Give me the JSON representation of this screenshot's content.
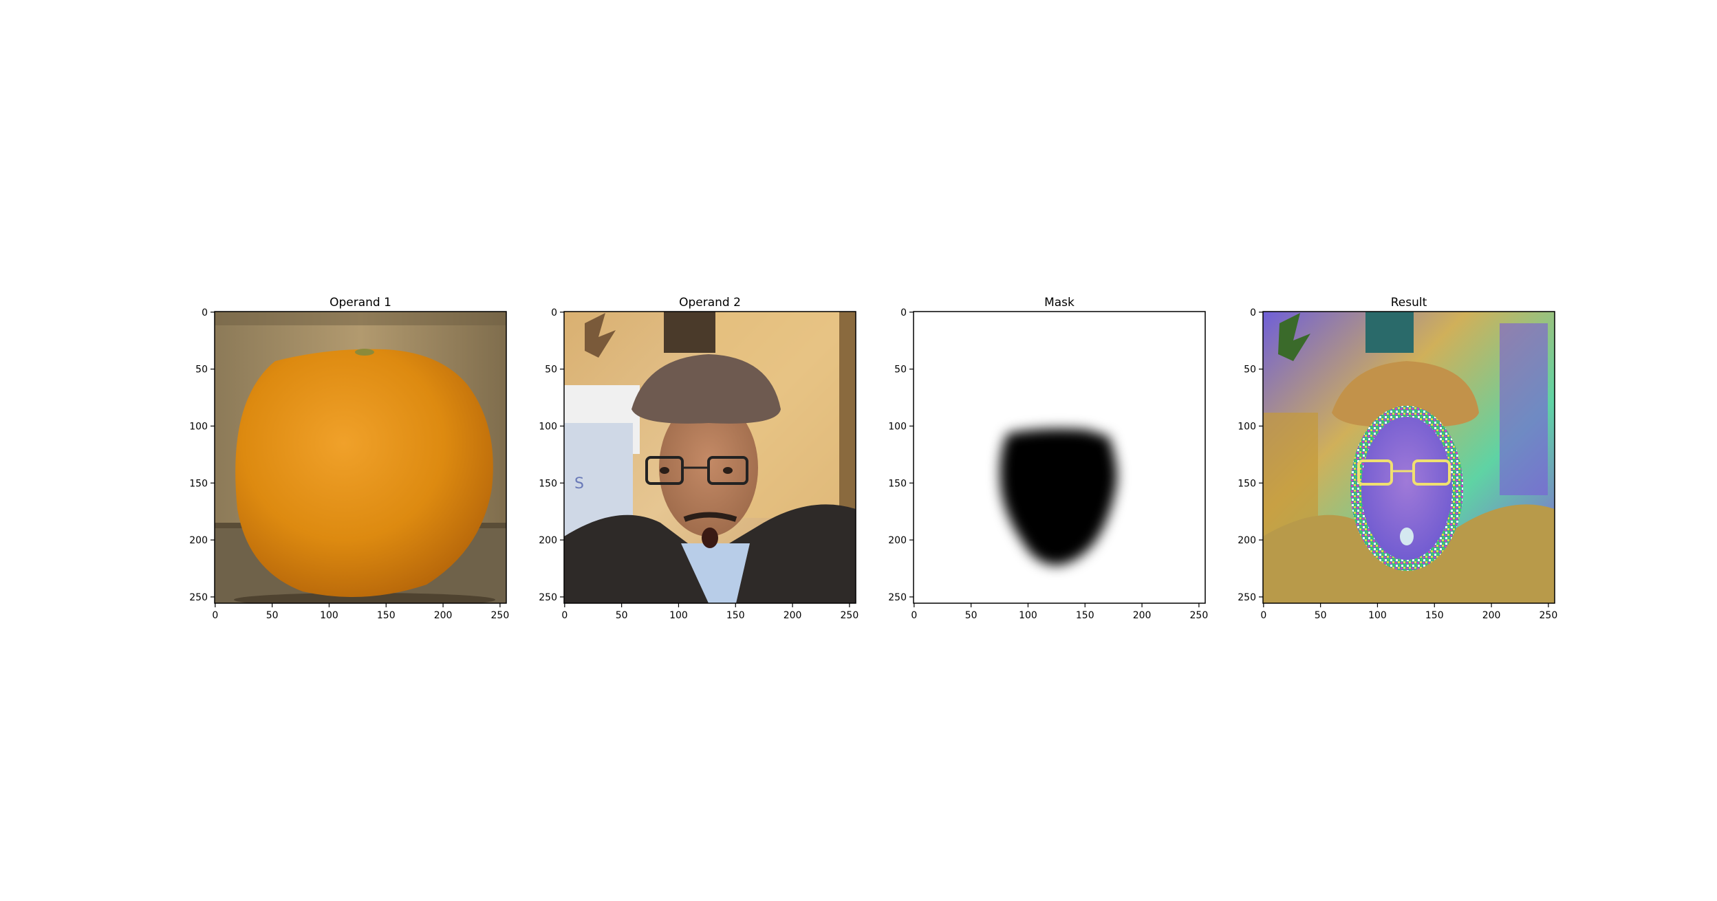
{
  "figure": {
    "panels": [
      {
        "title": "Operand 1",
        "image_content": "photo of an orange on a table against a wooden background"
      },
      {
        "title": "Operand 2",
        "image_content": "photo of a surprised man wearing a flat cap and glasses"
      },
      {
        "title": "Mask",
        "image_content": "white field with a blurred black face-shaped blob"
      },
      {
        "title": "Result",
        "image_content": "color-inverted, psychedelic blend of the man's portrait with a noisy face outline"
      }
    ],
    "x_ticks": [
      "0",
      "50",
      "100",
      "150",
      "200",
      "250"
    ],
    "y_ticks": [
      "0",
      "50",
      "100",
      "150",
      "200",
      "250"
    ],
    "axis_range": [
      0,
      255
    ],
    "colors": {
      "orange": "#e08a0c",
      "background_wood": "#b79a6b",
      "mask_black": "#000000",
      "mask_white": "#ffffff"
    }
  }
}
